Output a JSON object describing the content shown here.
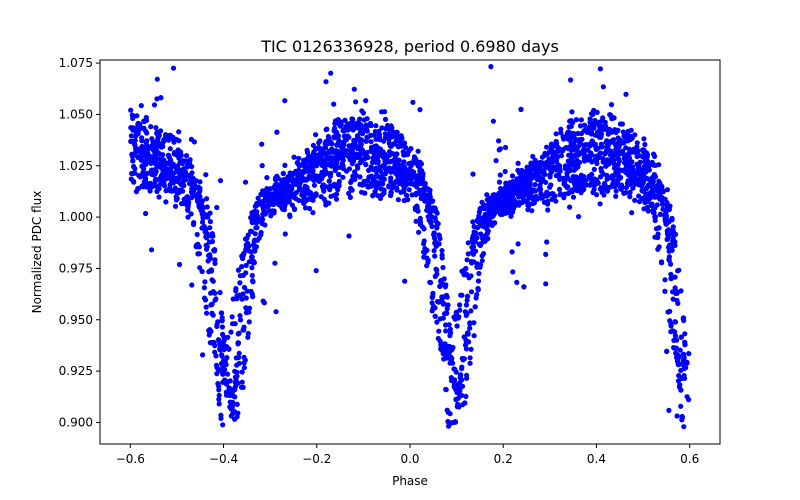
{
  "chart_data": {
    "type": "scatter",
    "title": "TIC 0126336928, period 0.6980 days",
    "xlabel": "Phase",
    "ylabel": "Normalized PDC flux",
    "xlim": [
      -0.665,
      0.665
    ],
    "ylim": [
      0.8895,
      1.0765
    ],
    "xticks": [
      -0.6,
      -0.4,
      -0.2,
      0.0,
      0.2,
      0.4,
      0.6
    ],
    "xtick_labels": [
      "−0.6",
      "−0.4",
      "−0.2",
      "0.0",
      "0.2",
      "0.4",
      "0.6"
    ],
    "yticks": [
      0.9,
      0.925,
      0.95,
      0.975,
      1.0,
      1.025,
      1.05,
      1.075
    ],
    "ytick_labels": [
      "0.900",
      "0.925",
      "0.950",
      "0.975",
      "1.000",
      "1.025",
      "1.050",
      "1.075"
    ],
    "grid": false,
    "legend": "none",
    "marker_color": "#0000ff",
    "series": [
      {
        "x_range": [
          -0.6,
          0.6
        ],
        "primary_eclipse_phase": -0.395,
        "secondary_eclipse_phase": 0.09,
        "primary_eclipse_min": 0.915,
        "secondary_eclipse_min": 0.92,
        "max_flux_near_phase": [
          -0.1,
          0.35
        ],
        "max_flux": 1.05,
        "sample_points": [
          [
            -0.6,
            1.04
          ],
          [
            -0.55,
            1.03
          ],
          [
            -0.5,
            1.015
          ],
          [
            -0.45,
            0.995
          ],
          [
            -0.42,
            0.96
          ],
          [
            -0.4,
            0.92
          ],
          [
            -0.39,
            0.915
          ],
          [
            -0.37,
            0.93
          ],
          [
            -0.35,
            0.97
          ],
          [
            -0.3,
            0.995
          ],
          [
            -0.2,
            1.02
          ],
          [
            -0.1,
            1.045
          ],
          [
            0.0,
            1.03
          ],
          [
            0.03,
            1.005
          ],
          [
            0.06,
            0.96
          ],
          [
            0.08,
            0.925
          ],
          [
            0.09,
            0.92
          ],
          [
            0.11,
            0.93
          ],
          [
            0.14,
            0.975
          ],
          [
            0.2,
            1.0
          ],
          [
            0.3,
            1.03
          ],
          [
            0.35,
            1.045
          ],
          [
            0.45,
            1.03
          ],
          [
            0.5,
            1.01
          ],
          [
            0.55,
            0.98
          ],
          [
            0.58,
            0.935
          ],
          [
            0.59,
            0.92
          ],
          [
            0.6,
            0.93
          ]
        ]
      }
    ]
  }
}
